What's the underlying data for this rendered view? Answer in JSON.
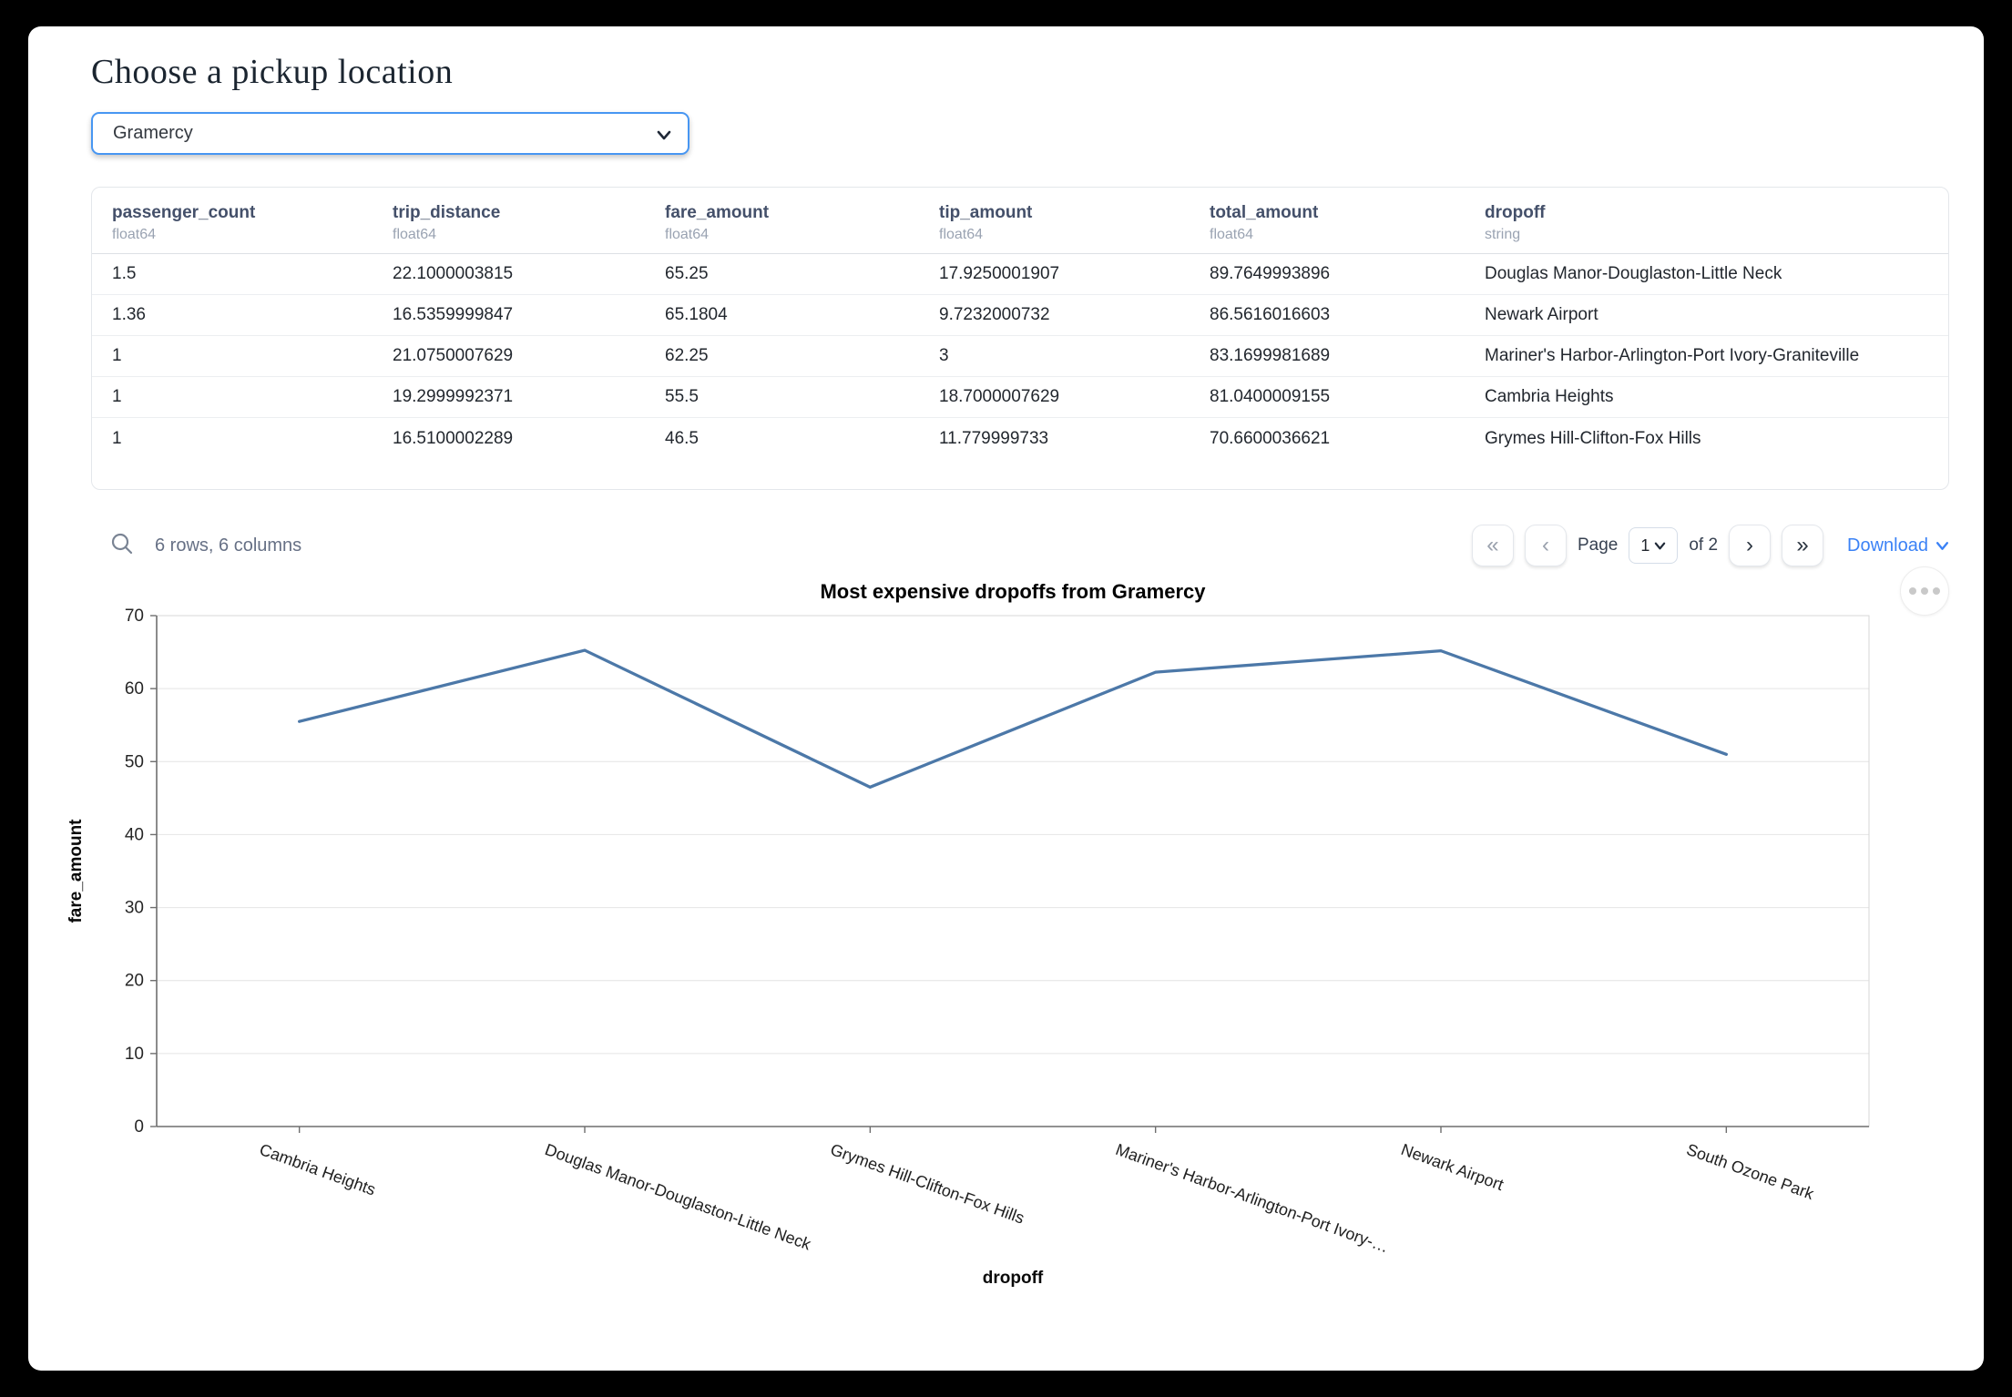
{
  "page_title": "Choose a pickup location",
  "pickup_select": {
    "value": "Gramercy"
  },
  "table": {
    "columns": [
      {
        "name": "passenger_count",
        "dtype": "float64"
      },
      {
        "name": "trip_distance",
        "dtype": "float64"
      },
      {
        "name": "fare_amount",
        "dtype": "float64"
      },
      {
        "name": "tip_amount",
        "dtype": "float64"
      },
      {
        "name": "total_amount",
        "dtype": "float64"
      },
      {
        "name": "dropoff",
        "dtype": "string"
      }
    ],
    "rows": [
      [
        "1.5",
        "22.1000003815",
        "65.25",
        "17.9250001907",
        "89.7649993896",
        "Douglas Manor-Douglaston-Little Neck"
      ],
      [
        "1.36",
        "16.5359999847",
        "65.1804",
        "9.7232000732",
        "86.5616016603",
        "Newark Airport"
      ],
      [
        "1",
        "21.0750007629",
        "62.25",
        "3",
        "83.1699981689",
        "Mariner's Harbor-Arlington-Port Ivory-Graniteville"
      ],
      [
        "1",
        "19.2999992371",
        "55.5",
        "18.7000007629",
        "81.0400009155",
        "Cambria Heights"
      ],
      [
        "1",
        "16.5100002289",
        "46.5",
        "11.779999733",
        "70.6600036621",
        "Grymes Hill-Clifton-Fox Hills"
      ]
    ]
  },
  "footer": {
    "summary": "6 rows, 6 columns",
    "first_icon": "«",
    "prev_icon": "‹",
    "next_icon": "›",
    "last_icon": "»",
    "page_label": "Page",
    "page_value": "1",
    "of_label": "of 2",
    "download_label": "Download"
  },
  "chart_data": {
    "type": "line",
    "title": "Most expensive dropoffs from Gramercy",
    "xlabel": "dropoff",
    "ylabel": "fare_amount",
    "categories": [
      "Cambria Heights",
      "Douglas Manor-Douglaston-Little Neck",
      "Grymes Hill-Clifton-Fox Hills",
      "Mariner's Harbor-Arlington-Port Ivory-…",
      "Newark Airport",
      "South Ozone Park"
    ],
    "values": [
      55.5,
      65.25,
      46.5,
      62.25,
      65.1804,
      51
    ],
    "ylim": [
      0,
      70
    ],
    "ytick_step": 10,
    "grid": true,
    "legend": "none",
    "line_color": "#4c78a8"
  }
}
